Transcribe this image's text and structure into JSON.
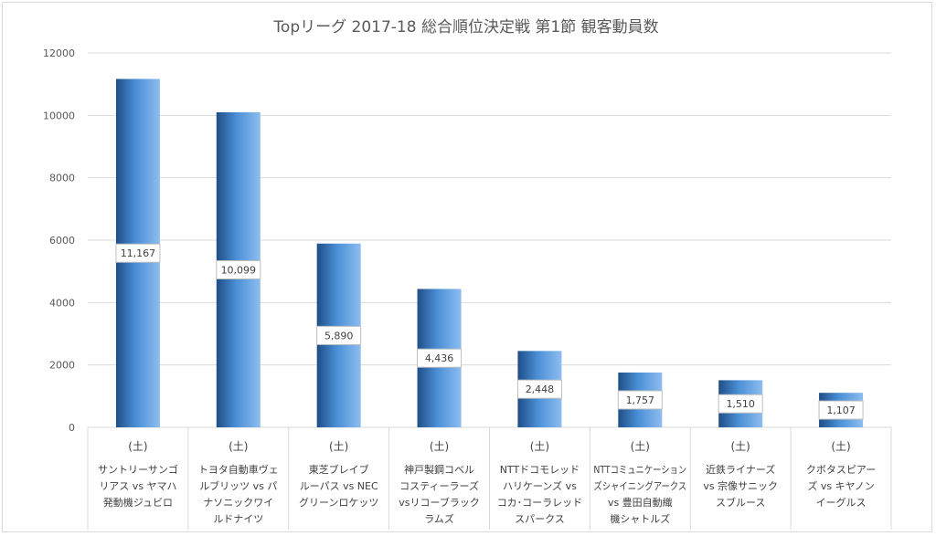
{
  "chart_data": {
    "type": "bar",
    "title": "Topリーグ 2017-18 総合順位決定戦 第1節 観客動員数",
    "ylim": [
      0,
      12000
    ],
    "yticks": [
      "0",
      "2000",
      "4000",
      "6000",
      "8000",
      "10000",
      "12000"
    ],
    "grid": true,
    "categories": [
      {
        "sub": "(土)",
        "lines": [
          "サントリーサンゴ",
          "リアス vs ヤマハ",
          "発動機ジュビロ"
        ]
      },
      {
        "sub": "(土)",
        "lines": [
          "トヨタ自動車ヴェ",
          "ルブリッツ vs パ",
          "ナソニックワイ",
          "ルドナイツ"
        ]
      },
      {
        "sub": "(土)",
        "lines": [
          "東芝ブレイブ",
          "ルーパス vs NEC",
          "グリーンロケッツ"
        ]
      },
      {
        "sub": "(土)",
        "lines": [
          "神戸製鋼コベル",
          "コスティーラーズ",
          "vsリコーブラック",
          "ラムズ"
        ]
      },
      {
        "sub": "(土)",
        "lines": [
          "NTTドコモレッド",
          "ハリケーンズ vs",
          "コカ･コーラレッド",
          "スパークス"
        ]
      },
      {
        "sub": "(土)",
        "lines": [
          "NTTコミュニケーション",
          "ズシャイニングアークス",
          "vs 豊田自動織",
          "機シャトルズ"
        ]
      },
      {
        "sub": "(土)",
        "lines": [
          "近鉄ライナーズ",
          "vs 宗像サニック",
          "スブルース"
        ]
      },
      {
        "sub": "(土)",
        "lines": [
          "クボタスピアー",
          "ズ vs キヤノン",
          "イーグルス"
        ]
      }
    ],
    "values": [
      11167,
      10099,
      5890,
      4436,
      2448,
      1757,
      1510,
      1107
    ],
    "data_labels": [
      "11,167",
      "10,099",
      "5,890",
      "4,436",
      "2,448",
      "1,757",
      "1,510",
      "1,107"
    ],
    "colors": {
      "bar_light": "#8dbdf0",
      "bar_mid": "#4a8fd6",
      "bar_dark": "#1f4e86",
      "grid": "#d9d9d9"
    }
  }
}
